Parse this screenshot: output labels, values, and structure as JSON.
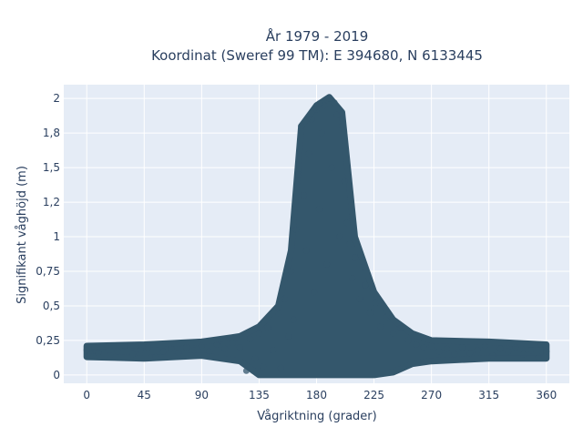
{
  "chart_data": {
    "type": "scatter",
    "title_line1": "År 1979 - 2019",
    "title_line2": "Koordinat (Sweref 99 TM): E 394680, N 6133445",
    "xlabel": "Vågriktning (grader)",
    "ylabel": "Signifikant våghöjd (m)",
    "xlim": [
      -18,
      378
    ],
    "ylim": [
      -0.06,
      2.1
    ],
    "x_ticks": [
      {
        "value": 0,
        "label": "0"
      },
      {
        "value": 45,
        "label": "45"
      },
      {
        "value": 90,
        "label": "90"
      },
      {
        "value": 135,
        "label": "135"
      },
      {
        "value": 180,
        "label": "180"
      },
      {
        "value": 225,
        "label": "225"
      },
      {
        "value": 270,
        "label": "270"
      },
      {
        "value": 315,
        "label": "315"
      },
      {
        "value": 360,
        "label": "360"
      }
    ],
    "y_ticks": [
      {
        "value": 0,
        "label": "0"
      },
      {
        "value": 0.25,
        "label": "0,25"
      },
      {
        "value": 0.5,
        "label": "0,5"
      },
      {
        "value": 0.75,
        "label": "0,75"
      },
      {
        "value": 1,
        "label": "1"
      },
      {
        "value": 1.25,
        "label": "1,2"
      },
      {
        "value": 1.5,
        "label": "1,5"
      },
      {
        "value": 1.75,
        "label": "1,8"
      },
      {
        "value": 2,
        "label": "2"
      }
    ],
    "grid": true,
    "colors": {
      "marker": "#34576c",
      "plot_background": "#e5ecf6",
      "grid": "#ffffff",
      "text": "#2a3f5f"
    },
    "marker_opacity": 0.75,
    "distribution_envelope": [
      {
        "x": 0,
        "y_min": 0.13,
        "y_max": 0.21
      },
      {
        "x": 45,
        "y_min": 0.12,
        "y_max": 0.22
      },
      {
        "x": 90,
        "y_min": 0.14,
        "y_max": 0.24
      },
      {
        "x": 120,
        "y_min": 0.1,
        "y_max": 0.28
      },
      {
        "x": 135,
        "y_min": 0.0,
        "y_max": 0.35
      },
      {
        "x": 150,
        "y_min": 0.0,
        "y_max": 0.5
      },
      {
        "x": 160,
        "y_min": 0.0,
        "y_max": 0.9
      },
      {
        "x": 168,
        "y_min": 0.0,
        "y_max": 1.8
      },
      {
        "x": 180,
        "y_min": 0.0,
        "y_max": 1.95
      },
      {
        "x": 190,
        "y_min": 0.0,
        "y_max": 2.01
      },
      {
        "x": 200,
        "y_min": 0.0,
        "y_max": 1.9
      },
      {
        "x": 210,
        "y_min": 0.0,
        "y_max": 1.0
      },
      {
        "x": 225,
        "y_min": 0.0,
        "y_max": 0.6
      },
      {
        "x": 240,
        "y_min": 0.02,
        "y_max": 0.4
      },
      {
        "x": 255,
        "y_min": 0.08,
        "y_max": 0.3
      },
      {
        "x": 270,
        "y_min": 0.1,
        "y_max": 0.25
      },
      {
        "x": 315,
        "y_min": 0.12,
        "y_max": 0.24
      },
      {
        "x": 360,
        "y_min": 0.12,
        "y_max": 0.22
      }
    ],
    "points": [
      {
        "x": 0,
        "y": 0.18
      },
      {
        "x": 3,
        "y": 0.15
      },
      {
        "x": 6,
        "y": 0.2
      },
      {
        "x": 9,
        "y": 0.16
      },
      {
        "x": 12,
        "y": 0.19
      },
      {
        "x": 18,
        "y": 0.14
      },
      {
        "x": 24,
        "y": 0.17
      },
      {
        "x": 30,
        "y": 0.21
      },
      {
        "x": 36,
        "y": 0.15
      },
      {
        "x": 42,
        "y": 0.18
      },
      {
        "x": 48,
        "y": 0.2
      },
      {
        "x": 54,
        "y": 0.13
      },
      {
        "x": 60,
        "y": 0.17
      },
      {
        "x": 66,
        "y": 0.19
      },
      {
        "x": 72,
        "y": 0.16
      },
      {
        "x": 78,
        "y": 0.2
      },
      {
        "x": 84,
        "y": 0.18
      },
      {
        "x": 90,
        "y": 0.21
      },
      {
        "x": 96,
        "y": 0.17
      },
      {
        "x": 102,
        "y": 0.22
      },
      {
        "x": 108,
        "y": 0.19
      },
      {
        "x": 114,
        "y": 0.23
      },
      {
        "x": 120,
        "y": 0.2
      },
      {
        "x": 125,
        "y": 0.03
      },
      {
        "x": 128,
        "y": 0.26
      },
      {
        "x": 132,
        "y": 0.12
      },
      {
        "x": 135,
        "y": 0.3
      },
      {
        "x": 138,
        "y": 0.06
      },
      {
        "x": 142,
        "y": 0.34
      },
      {
        "x": 146,
        "y": 0.18
      },
      {
        "x": 150,
        "y": 0.45
      },
      {
        "x": 152,
        "y": 0.05
      },
      {
        "x": 155,
        "y": 0.55
      },
      {
        "x": 158,
        "y": 0.28
      },
      {
        "x": 160,
        "y": 0.75
      },
      {
        "x": 162,
        "y": 0.4
      },
      {
        "x": 164,
        "y": 1.05
      },
      {
        "x": 166,
        "y": 1.45
      },
      {
        "x": 168,
        "y": 1.8
      },
      {
        "x": 170,
        "y": 1.3
      },
      {
        "x": 172,
        "y": 0.9
      },
      {
        "x": 174,
        "y": 1.6
      },
      {
        "x": 176,
        "y": 1.85
      },
      {
        "x": 178,
        "y": 0.6
      },
      {
        "x": 180,
        "y": 1.92
      },
      {
        "x": 182,
        "y": 1.2
      },
      {
        "x": 184,
        "y": 1.75
      },
      {
        "x": 186,
        "y": 1.95
      },
      {
        "x": 188,
        "y": 0.8
      },
      {
        "x": 190,
        "y": 2.0
      },
      {
        "x": 192,
        "y": 1.5
      },
      {
        "x": 194,
        "y": 1.97
      },
      {
        "x": 196,
        "y": 1.88
      },
      {
        "x": 198,
        "y": 1.0
      },
      {
        "x": 200,
        "y": 1.8
      },
      {
        "x": 202,
        "y": 1.4
      },
      {
        "x": 204,
        "y": 1.1
      },
      {
        "x": 206,
        "y": 0.95
      },
      {
        "x": 208,
        "y": 0.7
      },
      {
        "x": 210,
        "y": 0.85
      },
      {
        "x": 214,
        "y": 0.55
      },
      {
        "x": 218,
        "y": 0.65
      },
      {
        "x": 222,
        "y": 0.45
      },
      {
        "x": 226,
        "y": 0.52
      },
      {
        "x": 230,
        "y": 0.35
      },
      {
        "x": 235,
        "y": 0.42
      },
      {
        "x": 240,
        "y": 0.3
      },
      {
        "x": 246,
        "y": 0.34
      },
      {
        "x": 252,
        "y": 0.25
      },
      {
        "x": 258,
        "y": 0.22
      },
      {
        "x": 264,
        "y": 0.2
      },
      {
        "x": 270,
        "y": 0.21
      },
      {
        "x": 276,
        "y": 0.17
      },
      {
        "x": 282,
        "y": 0.19
      },
      {
        "x": 288,
        "y": 0.15
      },
      {
        "x": 294,
        "y": 0.2
      },
      {
        "x": 300,
        "y": 0.16
      },
      {
        "x": 306,
        "y": 0.18
      },
      {
        "x": 312,
        "y": 0.21
      },
      {
        "x": 318,
        "y": 0.14
      },
      {
        "x": 324,
        "y": 0.19
      },
      {
        "x": 330,
        "y": 0.17
      },
      {
        "x": 336,
        "y": 0.2
      },
      {
        "x": 342,
        "y": 0.15
      },
      {
        "x": 348,
        "y": 0.18
      },
      {
        "x": 354,
        "y": 0.13
      },
      {
        "x": 356,
        "y": 0.22
      },
      {
        "x": 360,
        "y": 0.17
      }
    ]
  }
}
